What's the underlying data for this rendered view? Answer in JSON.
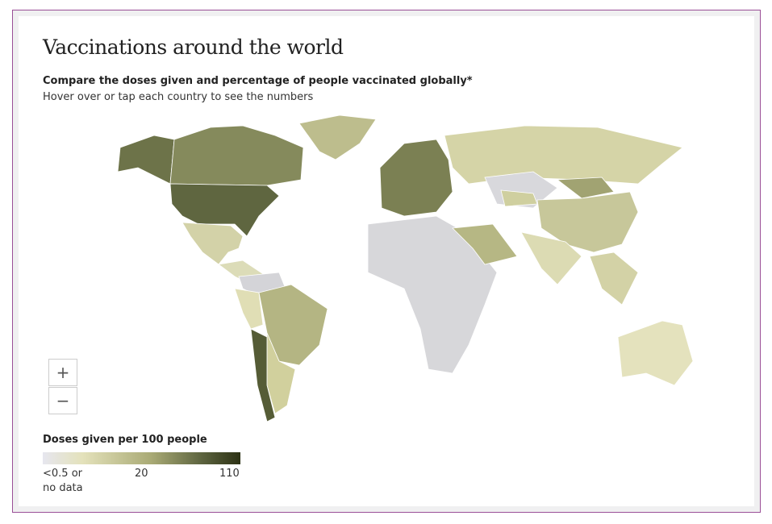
{
  "header": {
    "title": "Vaccinations around the world",
    "subtitle": "Compare the doses given and percentage of people vaccinated globally*",
    "instruction": "Hover over or tap each country to see the numbers"
  },
  "zoom": {
    "in": "+",
    "out": "−"
  },
  "legend": {
    "title": "Doses given per 100 people",
    "labels": [
      "<0.5 or",
      "no data",
      "20",
      "110"
    ]
  }
}
